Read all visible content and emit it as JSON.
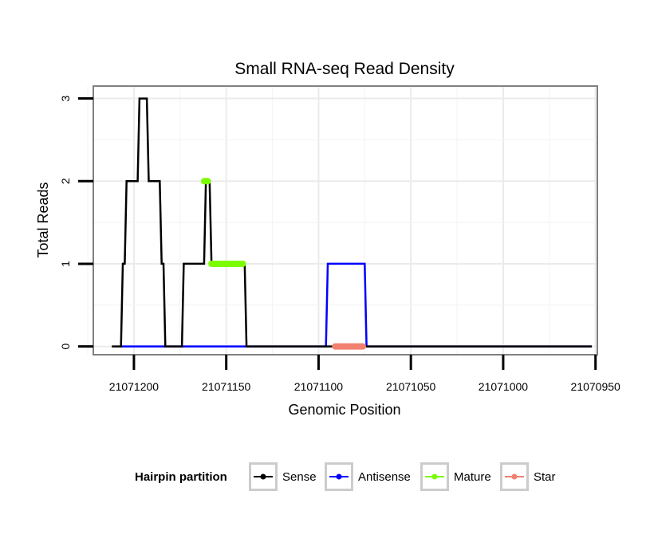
{
  "chart_data": {
    "type": "line",
    "title": "Small RNA-seq Read Density",
    "xlabel": "Genomic Position",
    "ylabel": "Total Reads",
    "x_reversed": true,
    "xlim": [
      21071222,
      21070949
    ],
    "ylim": [
      -0.1,
      3.15
    ],
    "x_ticks": [
      21071200,
      21071150,
      21071100,
      21071050,
      21071000,
      21070950
    ],
    "x_tick_labels": [
      "21071200",
      "21071150",
      "21071100",
      "21071050",
      "21071000",
      "21070950"
    ],
    "y_ticks": [
      0,
      1,
      2,
      3
    ],
    "y_tick_labels": [
      "0",
      "1",
      "2",
      "3"
    ],
    "grid": true,
    "legend": {
      "title": "Hairpin partition",
      "position": "bottom",
      "entries": [
        "Sense",
        "Antisense",
        "Mature",
        "Star"
      ]
    },
    "series": [
      {
        "name": "Sense",
        "color": "#000000",
        "style": "line",
        "points": [
          [
            21071212,
            0
          ],
          [
            21071207,
            0
          ],
          [
            21071206,
            1
          ],
          [
            21071205,
            1
          ],
          [
            21071204,
            2
          ],
          [
            21071198,
            2
          ],
          [
            21071197,
            3
          ],
          [
            21071193,
            3
          ],
          [
            21071192,
            2
          ],
          [
            21071186,
            2
          ],
          [
            21071185,
            1
          ],
          [
            21071184,
            1
          ],
          [
            21071183,
            0
          ],
          [
            21071174,
            0
          ],
          [
            21071173,
            1
          ],
          [
            21071162,
            1
          ],
          [
            21071161,
            2
          ],
          [
            21071159,
            2
          ],
          [
            21071158,
            1
          ],
          [
            21071140,
            1
          ],
          [
            21071139,
            0
          ],
          [
            21070952,
            0
          ]
        ]
      },
      {
        "name": "Antisense",
        "color": "#0000ff",
        "style": "line",
        "points": [
          [
            21071207,
            0
          ],
          [
            21071096,
            0
          ],
          [
            21071095,
            1
          ],
          [
            21071075,
            1
          ],
          [
            21071074,
            0
          ],
          [
            21070952,
            0
          ]
        ]
      },
      {
        "name": "Mature",
        "color": "#7cfc00",
        "style": "thick",
        "segments": [
          [
            [
              21071162,
              2
            ],
            [
              21071160,
              2
            ]
          ],
          [
            [
              21071158,
              1
            ],
            [
              21071141,
              1
            ]
          ]
        ]
      },
      {
        "name": "Star",
        "color": "#f08070",
        "style": "thick",
        "segments": [
          [
            [
              21071091,
              0
            ],
            [
              21071076,
              0
            ]
          ]
        ]
      }
    ]
  }
}
